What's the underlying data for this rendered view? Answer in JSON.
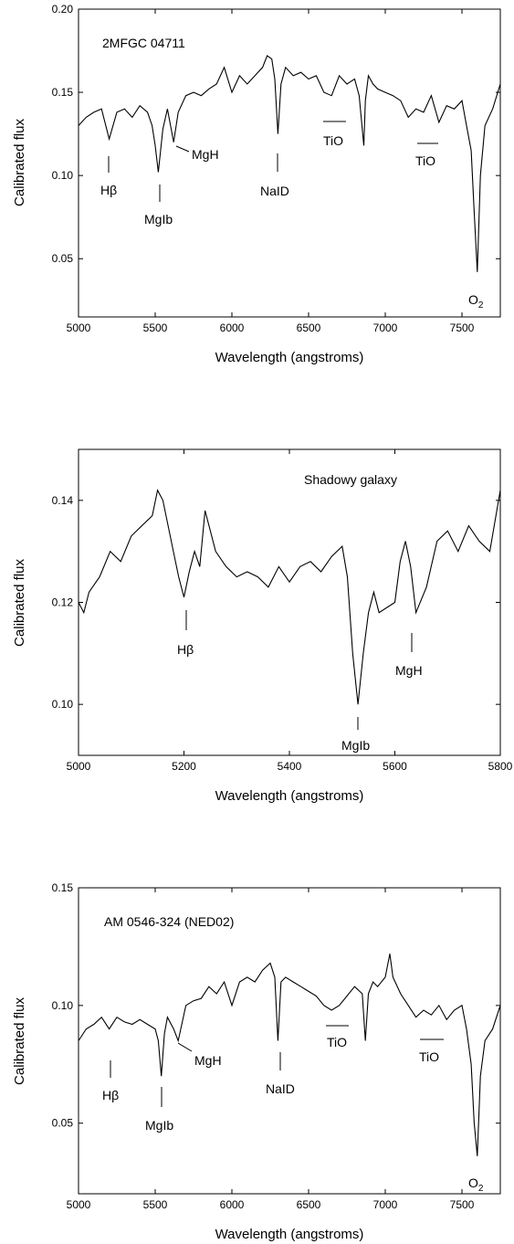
{
  "chart_data": [
    {
      "type": "line",
      "title": "2MFGC 04711",
      "xlabel": "Wavelength  (angstroms)",
      "ylabel": "Calibrated flux",
      "xlim": [
        5000,
        7750
      ],
      "ylim": [
        0.015,
        0.2
      ],
      "xticks": [
        5000,
        5500,
        6000,
        6500,
        7000,
        7500
      ],
      "yticks": [
        0.05,
        0.1,
        0.15,
        0.2
      ],
      "ytick_labels": [
        "0.05",
        "0.10",
        "0.15",
        "0.20"
      ],
      "grid": false,
      "series": [
        {
          "x": [
            5000,
            5050,
            5100,
            5150,
            5200,
            5250,
            5300,
            5350,
            5400,
            5450,
            5480,
            5500,
            5520,
            5550,
            5580,
            5620,
            5650,
            5700,
            5750,
            5800,
            5850,
            5900,
            5950,
            6000,
            6050,
            6100,
            6150,
            6200,
            6230,
            6260,
            6280,
            6300,
            6320,
            6350,
            6400,
            6450,
            6500,
            6550,
            6600,
            6650,
            6700,
            6750,
            6800,
            6830,
            6860,
            6870,
            6890,
            6920,
            6950,
            7000,
            7050,
            7100,
            7150,
            7200,
            7250,
            7300,
            7350,
            7400,
            7450,
            7500,
            7530,
            7560,
            7580,
            7600,
            7620,
            7650,
            7700,
            7750
          ],
          "y": [
            0.13,
            0.135,
            0.138,
            0.14,
            0.122,
            0.138,
            0.14,
            0.135,
            0.142,
            0.138,
            0.13,
            0.118,
            0.102,
            0.128,
            0.14,
            0.12,
            0.138,
            0.148,
            0.15,
            0.148,
            0.152,
            0.155,
            0.165,
            0.15,
            0.16,
            0.155,
            0.16,
            0.165,
            0.172,
            0.17,
            0.158,
            0.125,
            0.155,
            0.165,
            0.16,
            0.162,
            0.158,
            0.16,
            0.15,
            0.148,
            0.16,
            0.155,
            0.158,
            0.148,
            0.118,
            0.145,
            0.16,
            0.155,
            0.152,
            0.15,
            0.148,
            0.145,
            0.135,
            0.14,
            0.138,
            0.148,
            0.132,
            0.142,
            0.14,
            0.145,
            0.13,
            0.115,
            0.078,
            0.042,
            0.1,
            0.13,
            0.14,
            0.155
          ]
        }
      ],
      "annotations": [
        {
          "label": "Hβ",
          "x": 5200
        },
        {
          "label": "MgIb",
          "x": 5520
        },
        {
          "label": "MgH",
          "x": 5640
        },
        {
          "label": "NaID",
          "x": 6300
        },
        {
          "label": "TiO",
          "x": 6660
        },
        {
          "label": "TiO",
          "x": 7260
        },
        {
          "label": "O",
          "sub": "2",
          "x": 7600
        }
      ]
    },
    {
      "type": "line",
      "title": "Shadowy  galaxy",
      "xlabel": "Wavelength  (angstroms)",
      "ylabel": "Calibrated flux",
      "xlim": [
        5000,
        5800
      ],
      "ylim": [
        0.09,
        0.15
      ],
      "xticks": [
        5000,
        5200,
        5400,
        5600,
        5800
      ],
      "yticks": [
        0.1,
        0.12,
        0.14
      ],
      "ytick_labels": [
        "0.10",
        "0.12",
        "0.14"
      ],
      "grid": false,
      "series": [
        {
          "x": [
            5000,
            5010,
            5020,
            5040,
            5060,
            5080,
            5100,
            5120,
            5140,
            5150,
            5160,
            5180,
            5190,
            5200,
            5210,
            5220,
            5230,
            5240,
            5260,
            5280,
            5300,
            5320,
            5340,
            5360,
            5380,
            5400,
            5420,
            5440,
            5460,
            5480,
            5500,
            5510,
            5520,
            5530,
            5540,
            5550,
            5560,
            5570,
            5600,
            5610,
            5620,
            5630,
            5640,
            5660,
            5680,
            5700,
            5720,
            5740,
            5760,
            5780,
            5800
          ],
          "y": [
            0.12,
            0.118,
            0.122,
            0.125,
            0.13,
            0.128,
            0.133,
            0.135,
            0.137,
            0.142,
            0.14,
            0.13,
            0.125,
            0.121,
            0.126,
            0.13,
            0.127,
            0.138,
            0.13,
            0.127,
            0.125,
            0.126,
            0.125,
            0.123,
            0.127,
            0.124,
            0.127,
            0.128,
            0.126,
            0.129,
            0.131,
            0.125,
            0.11,
            0.1,
            0.11,
            0.118,
            0.122,
            0.118,
            0.12,
            0.128,
            0.132,
            0.127,
            0.118,
            0.123,
            0.132,
            0.134,
            0.13,
            0.135,
            0.132,
            0.13,
            0.142
          ]
        }
      ],
      "annotations": [
        {
          "label": "Hβ",
          "x": 5205
        },
        {
          "label": "MgIb",
          "x": 5530
        },
        {
          "label": "MgH",
          "x": 5630
        }
      ]
    },
    {
      "type": "line",
      "title": "AM 0546-324 (NED02)",
      "xlabel": "Wavelength  (angstroms)",
      "ylabel": "Calibrated flux",
      "xlim": [
        5000,
        7750
      ],
      "ylim": [
        0.02,
        0.15
      ],
      "xticks": [
        5000,
        5500,
        6000,
        6500,
        7000,
        7500
      ],
      "yticks": [
        0.05,
        0.1,
        0.15
      ],
      "ytick_labels": [
        "0.05",
        "0.10",
        "0.15"
      ],
      "grid": false,
      "series": [
        {
          "x": [
            5000,
            5050,
            5100,
            5150,
            5200,
            5250,
            5300,
            5350,
            5400,
            5450,
            5500,
            5520,
            5540,
            5560,
            5580,
            5620,
            5650,
            5700,
            5750,
            5800,
            5850,
            5900,
            5950,
            6000,
            6050,
            6100,
            6150,
            6200,
            6250,
            6280,
            6300,
            6320,
            6350,
            6400,
            6450,
            6500,
            6550,
            6600,
            6650,
            6700,
            6750,
            6800,
            6850,
            6870,
            6890,
            6920,
            6950,
            7000,
            7030,
            7050,
            7100,
            7150,
            7200,
            7250,
            7300,
            7350,
            7400,
            7450,
            7500,
            7530,
            7560,
            7580,
            7600,
            7620,
            7650,
            7700,
            7750
          ],
          "y": [
            0.085,
            0.09,
            0.092,
            0.095,
            0.09,
            0.095,
            0.093,
            0.092,
            0.094,
            0.092,
            0.09,
            0.085,
            0.07,
            0.088,
            0.095,
            0.09,
            0.085,
            0.1,
            0.102,
            0.103,
            0.108,
            0.105,
            0.11,
            0.1,
            0.11,
            0.112,
            0.11,
            0.115,
            0.118,
            0.112,
            0.085,
            0.11,
            0.112,
            0.11,
            0.108,
            0.106,
            0.104,
            0.1,
            0.098,
            0.1,
            0.104,
            0.108,
            0.105,
            0.085,
            0.105,
            0.11,
            0.108,
            0.112,
            0.122,
            0.112,
            0.105,
            0.1,
            0.095,
            0.098,
            0.096,
            0.1,
            0.094,
            0.098,
            0.1,
            0.09,
            0.075,
            0.05,
            0.036,
            0.07,
            0.085,
            0.09,
            0.1
          ]
        }
      ],
      "annotations": [
        {
          "label": "Hβ",
          "x": 5210
        },
        {
          "label": "MgIb",
          "x": 5540
        },
        {
          "label": "MgH",
          "x": 5650
        },
        {
          "label": "NaID",
          "x": 6310
        },
        {
          "label": "TiO",
          "x": 6680
        },
        {
          "label": "TiO",
          "x": 7300
        },
        {
          "label": "O",
          "sub": "2",
          "x": 7600
        }
      ]
    }
  ]
}
